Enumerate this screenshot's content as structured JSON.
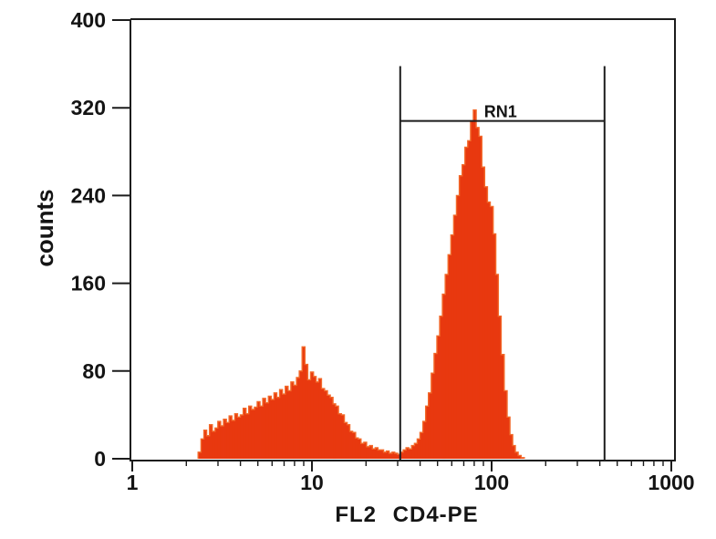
{
  "chart_data": {
    "type": "bar",
    "xlabel": "FL2 CD4-PE",
    "ylabel": "counts",
    "xscale": "log",
    "xlim": [
      1,
      1000
    ],
    "ylim": [
      0,
      400
    ],
    "xticks": [
      1,
      10,
      100,
      1000
    ],
    "yticks": [
      0,
      80,
      160,
      240,
      320,
      400
    ],
    "grid": false,
    "markers": [
      {
        "label": "RN1",
        "x": [
          31,
          425
        ]
      }
    ],
    "colors": {
      "bar": "#e8380f",
      "bar_edge": "#f2692a",
      "axes": "#1c1c1c"
    },
    "x": [
      2.37,
      2.46,
      2.55,
      2.64,
      2.74,
      2.84,
      2.94,
      3.05,
      3.16,
      3.28,
      3.4,
      3.52,
      3.65,
      3.79,
      3.92,
      4.07,
      4.22,
      4.37,
      4.53,
      4.7,
      4.87,
      5.05,
      5.23,
      5.42,
      5.62,
      5.83,
      6.04,
      6.26,
      6.49,
      6.73,
      6.98,
      7.23,
      7.5,
      7.77,
      8.06,
      8.35,
      8.66,
      8.98,
      9.31,
      9.65,
      10,
      10.4,
      10.7,
      11.1,
      11.5,
      12,
      12.4,
      12.9,
      13.3,
      13.8,
      14.3,
      14.9,
      15.4,
      16,
      16.5,
      17.2,
      17.8,
      18.4,
      19.1,
      19.8,
      20.5,
      21.3,
      22.1,
      22.9,
      23.7,
      24.6,
      25.5,
      26.4,
      27.4,
      28.4,
      29.4,
      30.5,
      31.6,
      32.8,
      34,
      35.2,
      36.5,
      37.9,
      39.2,
      40.7,
      42.2,
      43.7,
      45.3,
      47,
      48.7,
      50.5,
      52.3,
      54.2,
      56.2,
      58.3,
      60.4,
      62.6,
      64.9,
      67.3,
      69.8,
      72.3,
      75,
      77.7,
      80.6,
      83.5,
      86.6,
      89.8,
      93.1,
      96.5,
      100,
      104,
      107,
      111,
      115,
      120,
      124,
      129,
      133,
      138,
      143,
      149
    ],
    "values": [
      6,
      18,
      26,
      21,
      31,
      25,
      28,
      34,
      30,
      36,
      33,
      39,
      35,
      41,
      38,
      40,
      46,
      41,
      48,
      45,
      47,
      52,
      48,
      55,
      51,
      57,
      54,
      60,
      56,
      63,
      59,
      66,
      62,
      70,
      67,
      74,
      80,
      102,
      86,
      72,
      79,
      75,
      70,
      73,
      64,
      62,
      58,
      56,
      50,
      48,
      41,
      40,
      33,
      31,
      25,
      24,
      19,
      18,
      14,
      15,
      11,
      12,
      9,
      10,
      8,
      8,
      6,
      7,
      5,
      6,
      5,
      4,
      6,
      8,
      10,
      9,
      12,
      14,
      18,
      24,
      34,
      48,
      60,
      78,
      96,
      112,
      130,
      150,
      168,
      186,
      204,
      222,
      240,
      258,
      268,
      284,
      290,
      308,
      318,
      302,
      294,
      266,
      248,
      234,
      230,
      205,
      168,
      130,
      95,
      62,
      38,
      22,
      12,
      6,
      3,
      1
    ]
  }
}
